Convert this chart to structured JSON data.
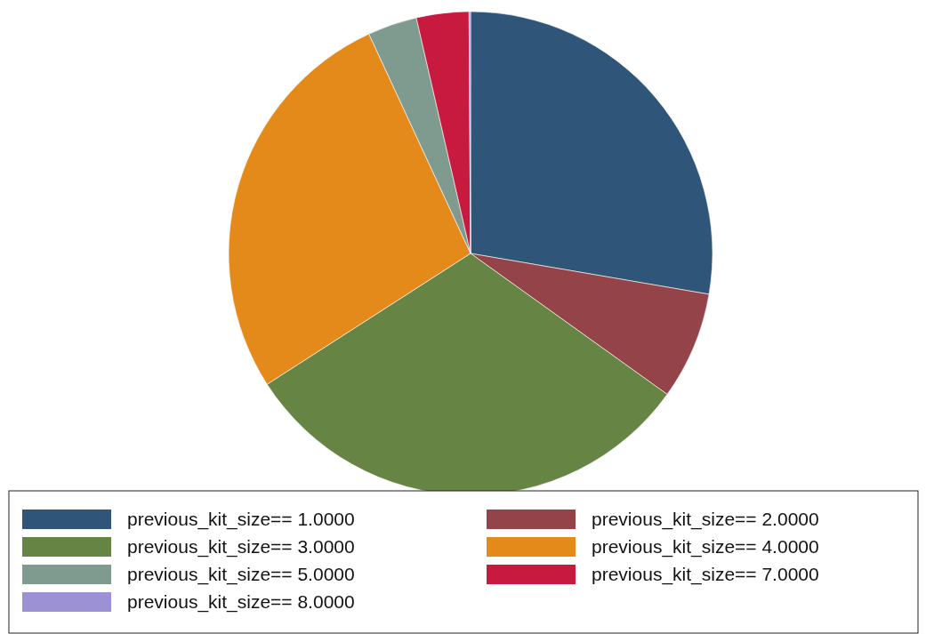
{
  "chart_data": {
    "type": "pie",
    "categories": [
      "previous_kit_size== 1.0000",
      "previous_kit_size== 2.0000",
      "previous_kit_size== 3.0000",
      "previous_kit_size== 4.0000",
      "previous_kit_size== 5.0000",
      "previous_kit_size== 7.0000",
      "previous_kit_size== 8.0000"
    ],
    "values": [
      27.7,
      7.2,
      31.0,
      27.2,
      3.3,
      3.5,
      0.1
    ],
    "colors": [
      "#2f5679",
      "#944449",
      "#668443",
      "#e48a1a",
      "#7f9a8e",
      "#c8193e",
      "#9b91d4"
    ],
    "legend": "bottom"
  }
}
